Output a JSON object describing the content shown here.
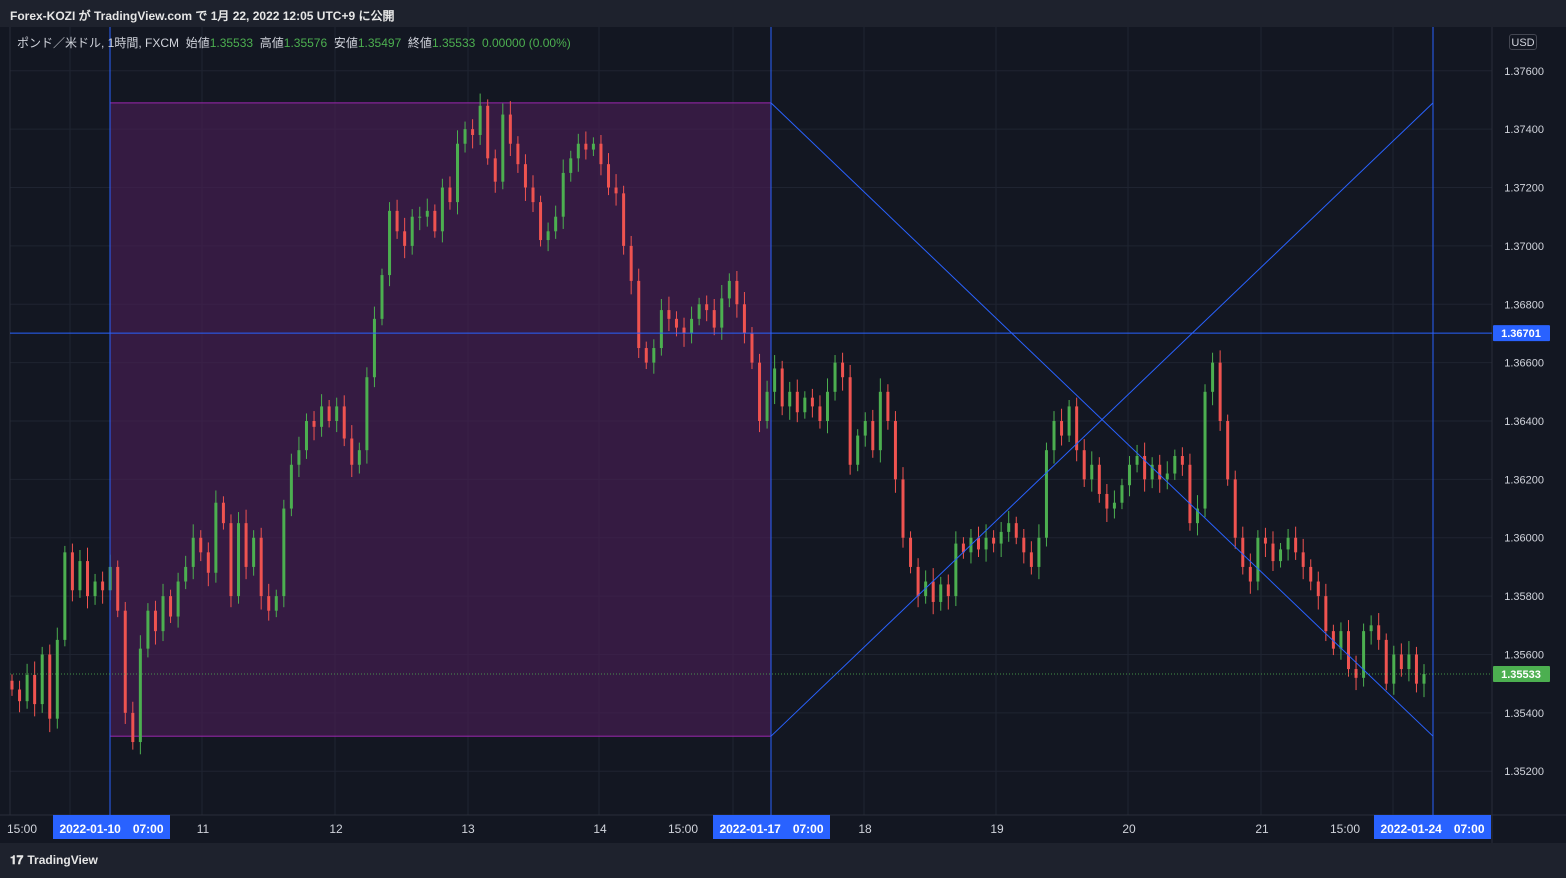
{
  "header": {
    "published": "Forex-KOZI が TradingView.com で 1月 22, 2022 12:05 UTC+9 に公開"
  },
  "legend": {
    "symbol": "ポンド／米ドル, 1時間, FXCM",
    "open_label": "始値",
    "open": "1.35533",
    "high_label": "高値",
    "high": "1.35576",
    "low_label": "安値",
    "low": "1.35497",
    "close_label": "終値",
    "close": "1.35533",
    "change": "0.00000 (0.00%)"
  },
  "currency_button": "USD",
  "footer": {
    "brand": "TradingView",
    "brand_icon": "tradingview-logo-icon"
  },
  "colors": {
    "up": "#4caf50",
    "down": "#ef5350",
    "drawing": "#2962ff",
    "rect_fill": "#4a1f56",
    "rect_border": "#9c27b0",
    "last_price": "#4caf50"
  },
  "chart_data": {
    "type": "candlestick",
    "symbol": "GBPUSD",
    "timeframe": "1h",
    "ylim": [
      1.3505,
      1.3775
    ],
    "y_ticks": [
      "1.35200",
      "1.35400",
      "1.35600",
      "1.35800",
      "1.36000",
      "1.36200",
      "1.36400",
      "1.36600",
      "1.36800",
      "1.37000",
      "1.37200",
      "1.37400",
      "1.37600"
    ],
    "x_ticks": [
      "15:00",
      "11",
      "12",
      "13",
      "14",
      "15:00",
      "18",
      "19",
      "20",
      "21",
      "15:00"
    ],
    "x_highlight": [
      "2022-01-10　07:00",
      "2022-01-17　07:00",
      "2022-01-24　07:00"
    ],
    "horizontal_line": {
      "price": 1.36701,
      "label": "1.36701"
    },
    "last_price": {
      "price": 1.35533,
      "label": "1.35533"
    },
    "rectangle": {
      "from": "2022-01-10 07:00",
      "to": "2022-01-17 07:00",
      "top": 1.3749,
      "bottom": 1.3532
    },
    "diagonal_lines": [
      {
        "from": [
          "2022-01-17 07:00",
          1.3749
        ],
        "to": [
          "2022-01-24 07:00",
          1.3532
        ]
      },
      {
        "from": [
          "2022-01-17 07:00",
          1.3532
        ],
        "to": [
          "2022-01-24 07:00",
          1.3749
        ]
      }
    ],
    "path": [
      1.3548,
      1.3544,
      1.3553,
      1.3543,
      1.356,
      1.3538,
      1.3565,
      1.3595,
      1.3582,
      1.3592,
      1.358,
      1.3585,
      1.3582,
      1.359,
      1.3575,
      1.354,
      1.353,
      1.3562,
      1.3575,
      1.3568,
      1.358,
      1.3573,
      1.3585,
      1.359,
      1.36,
      1.3595,
      1.3588,
      1.3612,
      1.3605,
      1.358,
      1.3605,
      1.359,
      1.36,
      1.358,
      1.3575,
      1.358,
      1.361,
      1.3625,
      1.363,
      1.364,
      1.3638,
      1.3645,
      1.364,
      1.3645,
      1.3634,
      1.3625,
      1.363,
      1.3655,
      1.3675,
      1.369,
      1.3712,
      1.3705,
      1.37,
      1.371,
      1.371,
      1.3712,
      1.3705,
      1.372,
      1.3715,
      1.3735,
      1.374,
      1.3738,
      1.3748,
      1.373,
      1.3722,
      1.3745,
      1.3735,
      1.3728,
      1.372,
      1.3715,
      1.3702,
      1.3705,
      1.371,
      1.3725,
      1.373,
      1.3735,
      1.3733,
      1.3735,
      1.3728,
      1.372,
      1.3718,
      1.37,
      1.3688,
      1.3665,
      1.366,
      1.3665,
      1.3678,
      1.3675,
      1.3672,
      1.367,
      1.3675,
      1.368,
      1.3678,
      1.3672,
      1.3682,
      1.3688,
      1.368,
      1.367,
      1.366,
      1.364,
      1.365,
      1.3658,
      1.3645,
      1.365,
      1.3643,
      1.3648,
      1.3645,
      1.364,
      1.365,
      1.366,
      1.3655,
      1.3625,
      1.3635,
      1.364,
      1.363,
      1.365,
      1.364,
      1.362,
      1.36,
      1.359,
      1.358,
      1.3585,
      1.3578,
      1.3584,
      1.358,
      1.3598,
      1.3595,
      1.36,
      1.3596,
      1.36,
      1.3598,
      1.3602,
      1.3605,
      1.36,
      1.3595,
      1.359,
      1.36,
      1.363,
      1.364,
      1.3635,
      1.3645,
      1.363,
      1.362,
      1.3625,
      1.3615,
      1.361,
      1.3612,
      1.3618,
      1.3625,
      1.3628,
      1.362,
      1.3625,
      1.362,
      1.3622,
      1.3628,
      1.3625,
      1.3605,
      1.361,
      1.365,
      1.366,
      1.364,
      1.362,
      1.36,
      1.359,
      1.3585,
      1.36,
      1.3598,
      1.3592,
      1.3596,
      1.36,
      1.3595,
      1.359,
      1.3585,
      1.358,
      1.3568,
      1.3562,
      1.3568,
      1.3555,
      1.3552,
      1.3568,
      1.357,
      1.3565,
      1.355,
      1.356,
      1.3555,
      1.356,
      1.355,
      1.35533
    ]
  }
}
